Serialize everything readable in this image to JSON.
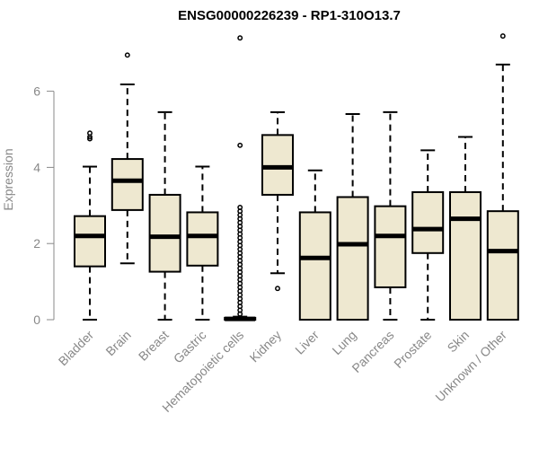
{
  "chart_data": {
    "type": "boxplot",
    "title": "ENSG00000226239 - RP1-310O13.7",
    "ylabel": "Expression",
    "xlabel": "",
    "ylim": [
      0,
      7.6
    ],
    "yticks": [
      0,
      2,
      4,
      6
    ],
    "grid": false,
    "box_fill": "#EEE8D0",
    "categories": [
      "Bladder",
      "Brain",
      "Breast",
      "Gastric",
      "Hematopoietic cells",
      "Kidney",
      "Liver",
      "Lung",
      "Pancreas",
      "Prostate",
      "Skin",
      "Unknown / Other"
    ],
    "boxes": [
      {
        "whisker_low": 0.0,
        "q1": 1.4,
        "median": 2.2,
        "q3": 2.72,
        "whisker_high": 4.02,
        "outliers": [
          4.75,
          4.8,
          4.9
        ]
      },
      {
        "whisker_low": 1.48,
        "q1": 2.88,
        "median": 3.65,
        "q3": 4.22,
        "whisker_high": 6.18,
        "outliers": [
          6.95
        ]
      },
      {
        "whisker_low": 0.0,
        "q1": 1.26,
        "median": 2.18,
        "q3": 3.28,
        "whisker_high": 5.45,
        "outliers": []
      },
      {
        "whisker_low": 0.0,
        "q1": 1.42,
        "median": 2.2,
        "q3": 2.82,
        "whisker_high": 4.02,
        "outliers": []
      },
      {
        "whisker_low": 0.0,
        "q1": 0.0,
        "median": 0.02,
        "q3": 0.05,
        "whisker_high": 0.08,
        "outliers": [
          0.15,
          0.25,
          0.35,
          0.45,
          0.55,
          0.65,
          0.75,
          0.85,
          0.95,
          1.05,
          1.15,
          1.25,
          1.35,
          1.45,
          1.55,
          1.65,
          1.75,
          1.85,
          1.95,
          2.05,
          2.15,
          2.25,
          2.35,
          2.45,
          2.55,
          2.65,
          2.75,
          2.85,
          2.95,
          4.58,
          7.4
        ]
      },
      {
        "whisker_low": 1.22,
        "q1": 3.28,
        "median": 4.0,
        "q3": 4.85,
        "whisker_high": 5.45,
        "outliers": [
          0.82
        ]
      },
      {
        "whisker_low": 0.0,
        "q1": 0.0,
        "median": 1.62,
        "q3": 2.82,
        "whisker_high": 3.92,
        "outliers": []
      },
      {
        "whisker_low": 0.0,
        "q1": 0.0,
        "median": 1.98,
        "q3": 3.22,
        "whisker_high": 5.4,
        "outliers": []
      },
      {
        "whisker_low": 0.0,
        "q1": 0.85,
        "median": 2.2,
        "q3": 2.98,
        "whisker_high": 5.45,
        "outliers": []
      },
      {
        "whisker_low": 0.0,
        "q1": 1.75,
        "median": 2.38,
        "q3": 3.35,
        "whisker_high": 4.45,
        "outliers": []
      },
      {
        "whisker_low": 0.0,
        "q1": 0.0,
        "median": 2.65,
        "q3": 3.35,
        "whisker_high": 4.8,
        "outliers": []
      },
      {
        "whisker_low": 0.0,
        "q1": 0.0,
        "median": 1.8,
        "q3": 2.85,
        "whisker_high": 6.7,
        "outliers": [
          7.45
        ]
      }
    ]
  }
}
